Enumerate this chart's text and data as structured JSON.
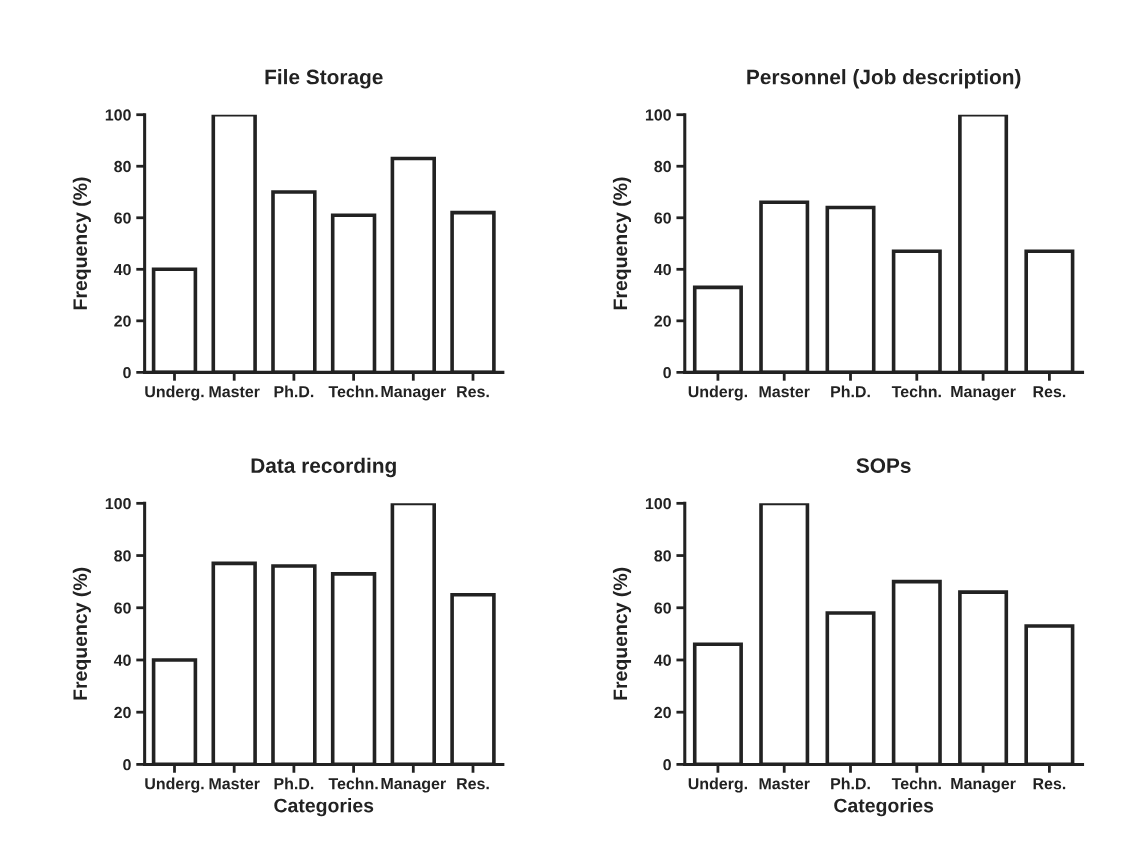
{
  "chart_data": [
    {
      "type": "bar",
      "title": "File Storage",
      "ylabel": "Frequency (%)",
      "categories": [
        "Underg.",
        "Master",
        "Ph.D.",
        "Techn.",
        "Manager",
        "Res."
      ],
      "values": [
        40,
        100,
        70,
        61,
        83,
        62
      ],
      "color": "#ffffff",
      "ylim": [
        0,
        100
      ],
      "yticks": [
        0,
        20,
        40,
        60,
        80,
        100
      ],
      "grid": false,
      "legend": false
    },
    {
      "type": "bar",
      "title": "Personnel (Job description)",
      "ylabel": "Frequency (%)",
      "categories": [
        "Underg.",
        "Master",
        "Ph.D.",
        "Techn.",
        "Manager",
        "Res."
      ],
      "values": [
        33,
        66,
        64,
        47,
        100,
        47
      ],
      "color": "#ffffff",
      "ylim": [
        0,
        100
      ],
      "yticks": [
        0,
        20,
        40,
        60,
        80,
        100
      ],
      "grid": false,
      "legend": false
    },
    {
      "type": "bar",
      "title": "Data recording",
      "xlabel": "Categories",
      "ylabel": "Frequency (%)",
      "categories": [
        "Underg.",
        "Master",
        "Ph.D.",
        "Techn.",
        "Manager",
        "Res."
      ],
      "values": [
        40,
        77,
        76,
        73,
        100,
        65
      ],
      "color": "#ffffff",
      "ylim": [
        0,
        100
      ],
      "yticks": [
        0,
        20,
        40,
        60,
        80,
        100
      ],
      "grid": false,
      "legend": false
    },
    {
      "type": "bar",
      "title": "SOPs",
      "xlabel": "Categories",
      "ylabel": "Frequency (%)",
      "categories": [
        "Underg.",
        "Master",
        "Ph.D.",
        "Techn.",
        "Manager",
        "Res."
      ],
      "values": [
        46,
        100,
        58,
        70,
        66,
        53
      ],
      "color": "#ffffff",
      "ylim": [
        0,
        100
      ],
      "yticks": [
        0,
        20,
        40,
        60,
        80,
        100
      ],
      "grid": false,
      "legend": false
    }
  ]
}
